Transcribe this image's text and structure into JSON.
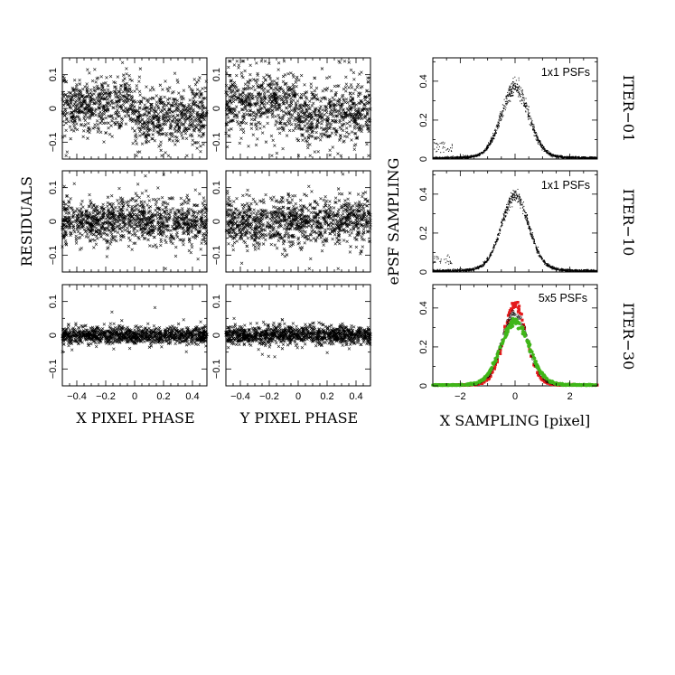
{
  "chart_data": [
    {
      "type": "scatter",
      "panel": "residuals-x-iter01",
      "ylim": [
        -0.15,
        0.15
      ],
      "xlim": [
        -0.5,
        0.5
      ],
      "y_ticks": [
        "0.1",
        "0",
        "-0.1"
      ],
      "pattern": {
        "kind": "x-step",
        "amplitude": 0.03,
        "noise": 0.04,
        "points": 1100
      }
    },
    {
      "type": "scatter",
      "panel": "residuals-y-iter01",
      "ylim": [
        -0.15,
        0.15
      ],
      "xlim": [
        -0.5,
        0.5
      ],
      "y_ticks": [
        "0.1",
        "0",
        "-0.1"
      ],
      "pattern": {
        "kind": "y-step",
        "amplitude": 0.03,
        "noise": 0.045,
        "points": 1100
      }
    },
    {
      "type": "scatter",
      "panel": "residuals-x-iter10",
      "ylim": [
        -0.15,
        0.15
      ],
      "xlim": [
        -0.5,
        0.5
      ],
      "y_ticks": [
        "0.1",
        "0",
        "-0.1"
      ],
      "pattern": {
        "kind": "flat",
        "amplitude": 0,
        "noise": 0.03,
        "points": 1100
      }
    },
    {
      "type": "scatter",
      "panel": "residuals-y-iter10",
      "ylim": [
        -0.15,
        0.15
      ],
      "xlim": [
        -0.5,
        0.5
      ],
      "y_ticks": [
        "0.1",
        "0",
        "-0.1"
      ],
      "pattern": {
        "kind": "flat",
        "amplitude": 0,
        "noise": 0.033,
        "points": 1100
      }
    },
    {
      "type": "scatter",
      "panel": "residuals-x-iter30",
      "ylim": [
        -0.15,
        0.15
      ],
      "xlim": [
        -0.5,
        0.5
      ],
      "y_ticks": [
        "0.1",
        "0",
        "-0.1"
      ],
      "x_ticks": [
        "-0.4",
        "-0.2",
        "0",
        "0.2",
        "0.4"
      ],
      "xlabel": "X PIXEL PHASE",
      "pattern": {
        "kind": "flat",
        "amplitude": 0,
        "noise": 0.012,
        "points": 1100
      }
    },
    {
      "type": "scatter",
      "panel": "residuals-y-iter30",
      "ylim": [
        -0.15,
        0.15
      ],
      "xlim": [
        -0.5,
        0.5
      ],
      "y_ticks": [
        "0.1",
        "0",
        "-0.1"
      ],
      "x_ticks": [
        "-0.4",
        "-0.2",
        "0",
        "0.2",
        "0.4"
      ],
      "xlabel": "Y PIXEL PHASE",
      "pattern": {
        "kind": "flat",
        "amplitude": 0,
        "noise": 0.013,
        "points": 1100
      }
    },
    {
      "type": "scatter",
      "panel": "epsf-iter01",
      "label": "1x1 PSFs",
      "xlim": [
        -3,
        3
      ],
      "ylim": [
        0,
        0.52
      ],
      "y_ticks": [
        "0.4",
        "0.2",
        "0"
      ],
      "profile": {
        "peak": 0.33,
        "sigma": 0.5,
        "wing_base": 0.012,
        "spread": 0.06,
        "points": 1500
      }
    },
    {
      "type": "scatter",
      "panel": "epsf-iter10",
      "label": "1x1 PSFs",
      "xlim": [
        -3,
        3
      ],
      "ylim": [
        0,
        0.52
      ],
      "y_ticks": [
        "0.4",
        "0.2",
        "0"
      ],
      "profile": {
        "peak": 0.35,
        "sigma": 0.5,
        "wing_base": 0.012,
        "spread": 0.04,
        "points": 1500
      }
    },
    {
      "type": "scatter",
      "panel": "epsf-iter30",
      "label": "5x5 PSFs",
      "xlim": [
        -3,
        3
      ],
      "ylim": [
        0,
        0.52
      ],
      "y_ticks": [
        "0.4",
        "0.2",
        "0"
      ],
      "x_ticks": [
        "-2",
        "0",
        "2"
      ],
      "xlabel": "X SAMPLING [pixel]",
      "series": [
        {
          "color": "#e41a1c",
          "peak": 0.38,
          "sigma": 0.42,
          "points": 260
        },
        {
          "color": "#000000",
          "peak": 0.34,
          "sigma": 0.47,
          "points": 200
        },
        {
          "color": "#3fb618",
          "peak": 0.3,
          "sigma": 0.52,
          "points": 330
        }
      ]
    }
  ],
  "labels": {
    "left_ylabel": "RESIDUALS",
    "right_ylabel": "ePSF SAMPLING",
    "row_labels": [
      "ITER−01",
      "ITER−10",
      "ITER−30"
    ]
  }
}
